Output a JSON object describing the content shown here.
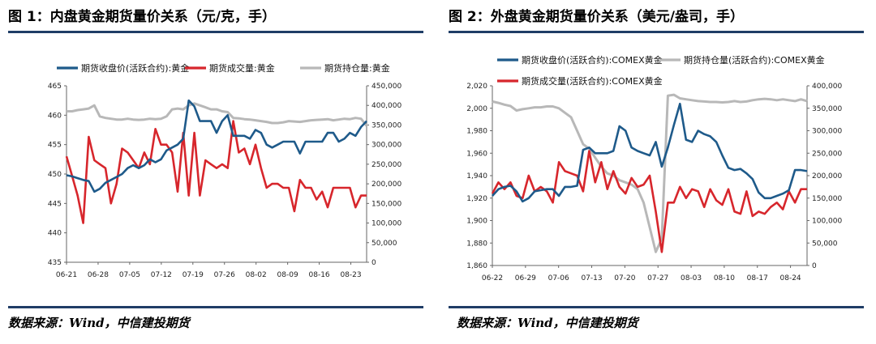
{
  "left": {
    "title": "图 1：内盘黄金期货量价关系（元/克，手）",
    "source": "数据来源：Wind，中信建投期货"
  },
  "right": {
    "title": "图 2：外盘黄金期货量价关系（美元/盎司，手）",
    "source": "数据来源：Wind，中信建投期货"
  },
  "colors": {
    "price": "#1e5a8a",
    "volume": "#d7262c",
    "oi": "#b8b8b8",
    "rule": "#1f3d66"
  },
  "chart_data": [
    {
      "type": "line",
      "title": "",
      "x_ticks": [
        "06-21",
        "06-28",
        "07-05",
        "07-12",
        "07-19",
        "07-26",
        "08-02",
        "08-09",
        "08-16",
        "08-23"
      ],
      "y_left": {
        "ylim": [
          435,
          465
        ],
        "ticks": [
          "465",
          "460",
          "455",
          "450",
          "445",
          "440",
          "435"
        ]
      },
      "y_right": {
        "ylim": [
          0,
          450000
        ],
        "ticks": [
          "450,000",
          "400,000",
          "350,000",
          "300,000",
          "250,000",
          "200,000",
          "150,000",
          "100,000",
          "50,000",
          "0"
        ]
      },
      "series": [
        {
          "name": "期货收盘价(活跃合约):黄金",
          "axis": "left",
          "color": "price",
          "values": [
            449.8,
            449.6,
            449.3,
            449.0,
            448.8,
            447.0,
            447.5,
            448.5,
            449.0,
            449.5,
            450.0,
            451.0,
            451.5,
            451.0,
            451.5,
            452.5,
            452.0,
            452.5,
            454.0,
            454.5,
            455.0,
            456.0,
            462.5,
            461.5,
            459.0,
            459.0,
            459.0,
            457.0,
            459.0,
            460.0,
            456.5,
            456.5,
            456.5,
            456.0,
            457.5,
            457.0,
            455.0,
            454.5,
            455.0,
            455.5,
            455.5,
            455.5,
            453.5,
            455.5,
            455.5,
            455.5,
            455.5,
            457.0,
            457.0,
            455.5,
            456.0,
            457.0,
            456.5,
            458.0,
            459.0
          ]
        },
        {
          "name": "期货成交量:黄金",
          "axis": "right",
          "color": "volume",
          "values": [
            270000,
            220000,
            170000,
            100000,
            320000,
            260000,
            250000,
            240000,
            150000,
            200000,
            290000,
            280000,
            260000,
            240000,
            280000,
            250000,
            340000,
            300000,
            300000,
            280000,
            180000,
            330000,
            170000,
            330000,
            170000,
            260000,
            250000,
            240000,
            250000,
            240000,
            360000,
            280000,
            290000,
            250000,
            300000,
            240000,
            190000,
            200000,
            200000,
            190000,
            190000,
            130000,
            210000,
            190000,
            190000,
            160000,
            180000,
            140000,
            190000,
            190000,
            190000,
            190000,
            140000,
            170000,
            170000
          ]
        },
        {
          "name": "期货持仓量:黄金",
          "axis": "right",
          "color": "oi",
          "values": [
            385000,
            385000,
            388000,
            390000,
            392000,
            400000,
            372000,
            368000,
            366000,
            364000,
            364000,
            366000,
            364000,
            363000,
            364000,
            366000,
            365000,
            366000,
            372000,
            390000,
            392000,
            390000,
            400000,
            405000,
            400000,
            395000,
            390000,
            390000,
            385000,
            383000,
            368000,
            367000,
            365000,
            364000,
            362000,
            360000,
            358000,
            355000,
            355000,
            357000,
            360000,
            359000,
            358000,
            360000,
            362000,
            363000,
            364000,
            365000,
            362000,
            364000,
            366000,
            365000,
            368000,
            366000,
            348000
          ]
        }
      ],
      "legend": "top"
    },
    {
      "type": "line",
      "title": "",
      "x_ticks": [
        "06-22",
        "06-29",
        "07-06",
        "07-13",
        "07-20",
        "07-27",
        "08-03",
        "08-10",
        "08-17",
        "08-24"
      ],
      "y_left": {
        "ylim": [
          1860,
          2020
        ],
        "ticks": [
          "2,020",
          "2,000",
          "1,980",
          "1,960",
          "1,940",
          "1,920",
          "1,900",
          "1,880",
          "1,860"
        ]
      },
      "y_right": {
        "ylim": [
          0,
          400000
        ],
        "ticks": [
          "400,000",
          "350,000",
          "300,000",
          "250,000",
          "200,000",
          "150,000",
          "100,000",
          "50,000",
          "0"
        ]
      },
      "series": [
        {
          "name": "期货收盘价(活跃合约):COMEX黄金",
          "axis": "left",
          "color": "price",
          "values": [
            1922,
            1928,
            1930,
            1931,
            1926,
            1917,
            1920,
            1926,
            1927,
            1928,
            1928,
            1922,
            1930,
            1930,
            1931,
            1963,
            1965,
            1960,
            1960,
            1960,
            1962,
            1984,
            1980,
            1965,
            1962,
            1960,
            1958,
            1970,
            1948,
            1965,
            1985,
            2004,
            1972,
            1970,
            1980,
            1977,
            1975,
            1970,
            1958,
            1947,
            1945,
            1946,
            1942,
            1937,
            1925,
            1920,
            1920,
            1922,
            1924,
            1927,
            1945,
            1945,
            1944
          ]
        },
        {
          "name": "期货持仓量(活跃合约):COMEX黄金",
          "axis": "right",
          "color": "oi",
          "values": [
            365000,
            362000,
            358000,
            355000,
            345000,
            348000,
            350000,
            352000,
            352000,
            354000,
            354000,
            350000,
            340000,
            330000,
            300000,
            270000,
            260000,
            240000,
            220000,
            205000,
            200000,
            190000,
            185000,
            180000,
            170000,
            140000,
            85000,
            30000,
            60000,
            378000,
            380000,
            372000,
            370000,
            368000,
            366000,
            365000,
            364000,
            364000,
            363000,
            364000,
            366000,
            364000,
            365000,
            368000,
            370000,
            371000,
            370000,
            368000,
            370000,
            368000,
            366000,
            370000,
            366000
          ]
        },
        {
          "name": "期货成交量(活跃合约):COMEX黄金",
          "axis": "right",
          "color": "volume",
          "values": [
            160000,
            185000,
            170000,
            185000,
            155000,
            150000,
            200000,
            165000,
            175000,
            165000,
            140000,
            230000,
            210000,
            205000,
            200000,
            165000,
            255000,
            185000,
            230000,
            170000,
            210000,
            175000,
            160000,
            195000,
            175000,
            180000,
            200000,
            120000,
            30000,
            140000,
            140000,
            175000,
            150000,
            170000,
            165000,
            130000,
            170000,
            145000,
            135000,
            170000,
            120000,
            115000,
            165000,
            110000,
            120000,
            115000,
            130000,
            140000,
            125000,
            165000,
            140000,
            170000,
            170000
          ]
        }
      ],
      "legend": "top"
    }
  ]
}
